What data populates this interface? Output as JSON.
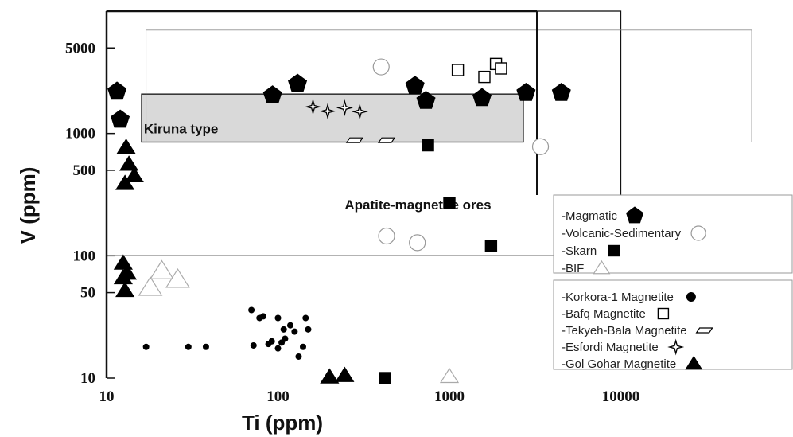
{
  "chart_data": {
    "type": "scatter",
    "xlabel": "Ti (ppm)",
    "ylabel": "V (ppm)",
    "xscale": "log",
    "yscale": "log",
    "xlim": [
      10,
      100000
    ],
    "ylim": [
      10,
      10000
    ],
    "x_ticks": [
      {
        "value": 10,
        "label": "10"
      },
      {
        "value": 100,
        "label": "100"
      },
      {
        "value": 1000,
        "label": "1000"
      },
      {
        "value": 10000,
        "label": "10000"
      }
    ],
    "y_ticks": [
      {
        "value": 10,
        "label": "10"
      },
      {
        "value": 50,
        "label": "50"
      },
      {
        "value": 100,
        "label": "100"
      },
      {
        "value": 500,
        "label": "500"
      },
      {
        "value": 1000,
        "label": "1000"
      },
      {
        "value": 5000,
        "label": "5000"
      }
    ],
    "regions": [
      {
        "label": "Apatite-magnetite ores",
        "x_range": [
          10,
          10000
        ],
        "y_range": [
          100,
          12000
        ],
        "fill": "none",
        "label_at": [
          245,
          240
        ]
      },
      {
        "label": "Kiruna type",
        "x_range": [
          16,
          2700
        ],
        "y_range": [
          850,
          2100
        ],
        "fill": "#d9d9d9",
        "label_at": [
          16.5,
          1000
        ]
      },
      {
        "label": "",
        "x_range": [
          17,
          58000
        ],
        "y_range": [
          850,
          7000
        ],
        "fill": "none",
        "label_at": null
      }
    ],
    "series": [
      {
        "name": "-Magmatic",
        "marker": "pentagon",
        "filled": true,
        "x": [
          11.5,
          12,
          93,
          130,
          630,
          730,
          1550,
          2800,
          4500
        ],
        "y": [
          2200,
          1300,
          2050,
          2550,
          2450,
          1850,
          1950,
          2150,
          2150
        ]
      },
      {
        "name": "-Volcanic-Sedimentary",
        "marker": "circle",
        "filled": false,
        "x": [
          400,
          430,
          650,
          3400
        ],
        "y": [
          3500,
          145,
          128,
          780
        ]
      },
      {
        "name": "-Skarn",
        "marker": "square",
        "filled": true,
        "x": [
          1000,
          750,
          1750,
          420
        ],
        "y": [
          270,
          800,
          120,
          10
        ]
      },
      {
        "name": "-BIF",
        "marker": "triangle",
        "filled": false,
        "x": [
          18,
          21,
          26,
          1000
        ],
        "y": [
          55,
          75,
          64,
          10.3
        ]
      },
      {
        "name": "-Korkora-1 Magnetite",
        "marker": "dot",
        "filled": true,
        "x": [
          17,
          30,
          38,
          72,
          78,
          82,
          88,
          92,
          100,
          100,
          105,
          108,
          110,
          118,
          125,
          132,
          140,
          150,
          145,
          70
        ],
        "y": [
          18,
          18,
          18,
          18.5,
          31,
          32,
          19,
          20,
          31,
          17.5,
          19.5,
          25,
          21,
          27,
          24,
          15,
          18,
          25,
          31,
          36
        ]
      },
      {
        "name": "-Bafq Magnetite",
        "marker": "square",
        "filled": false,
        "x": [
          1120,
          1600,
          1870,
          2000
        ],
        "y": [
          3300,
          2900,
          3700,
          3400
        ]
      },
      {
        "name": "-Tekyeh-Bala Magnetite",
        "marker": "parallelogram",
        "filled": false,
        "x": [
          280,
          430
        ],
        "y": [
          880,
          880
        ]
      },
      {
        "name": "-Esfordi Magnetite",
        "marker": "star4",
        "filled": false,
        "x": [
          160,
          195,
          245,
          300
        ],
        "y": [
          1650,
          1520,
          1620,
          1510
        ]
      },
      {
        "name": "-Gol Gohar Magnetite",
        "marker": "triangle",
        "filled": true,
        "x": [
          13,
          13.5,
          12.8,
          14.5,
          12.5,
          13.2,
          12.5,
          12.8,
          200,
          245
        ],
        "y": [
          770,
          560,
          390,
          450,
          87,
          72,
          66,
          52,
          10.2,
          10.5
        ]
      }
    ],
    "legend": {
      "placement": "right",
      "groups": [
        {
          "border": true,
          "items": [
            "-Magmatic",
            "-Volcanic-Sedimentary",
            "-Skarn",
            "-BIF"
          ]
        },
        {
          "border": true,
          "items": [
            "-Korkora-1 Magnetite",
            "-Bafq Magnetite",
            "-Tekyeh-Bala Magnetite",
            "-Esfordi Magnetite",
            "-Gol Gohar Magnetite"
          ]
        }
      ]
    },
    "grid": false
  }
}
